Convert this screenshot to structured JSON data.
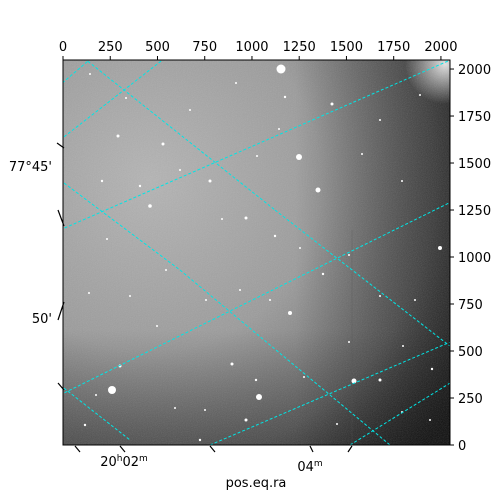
{
  "chart_data": {
    "type": "image",
    "pixel_axes": {
      "top_ticks": [
        "0",
        "250",
        "500",
        "750",
        "1000",
        "1250",
        "1500",
        "1750",
        "2000"
      ],
      "right_ticks": [
        "0",
        "250",
        "500",
        "750",
        "1000",
        "1250",
        "1500",
        "1750",
        "2000"
      ],
      "xlim": [
        0,
        2048
      ],
      "ylim": [
        0,
        2048
      ]
    },
    "world_axes": {
      "left_ticks": [
        "77°45'",
        "50'"
      ],
      "bottom_ticks": [
        {
          "hours": "20",
          "hours_unit": "h",
          "minutes": "02",
          "minutes_unit": "m"
        },
        {
          "minutes": "04",
          "minutes_unit": "m"
        }
      ],
      "xlabel": "pos.eq.ra"
    },
    "grid": true,
    "colors": {
      "grid": "#00e5e5",
      "background_light": "#b4b4b4",
      "background_dark": "#1a1a1a",
      "frame": "#000000"
    }
  }
}
